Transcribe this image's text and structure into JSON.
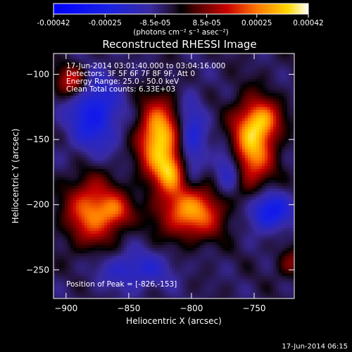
{
  "colorbar": {
    "ticks": [
      "-0.00042",
      "-0.00025",
      "-8.5e-05",
      "8.5e-05",
      "0.00025",
      "0.00042"
    ],
    "values": [
      -0.00042,
      -0.00025,
      -8.5e-05,
      8.5e-05,
      0.00025,
      0.00042
    ],
    "range": [
      -0.00042,
      0.00042
    ],
    "unit_label": "(photons cm⁻² s⁻¹ asec⁻²)"
  },
  "footer_timestamp": "17-Jun-2014 06:15",
  "chart_data": {
    "type": "heatmap",
    "title": "Reconstructed RHESSI Image",
    "xlabel": "Heliocentric X (arcsec)",
    "ylabel": "Heliocentric Y (arcsec)",
    "xlim": [
      -910,
      -718
    ],
    "ylim": [
      -272,
      -84
    ],
    "x_ticks": [
      -900,
      -850,
      -800,
      -750
    ],
    "y_ticks": [
      -100,
      -150,
      -200,
      -250
    ],
    "x_tick_labels": [
      "−900",
      "−850",
      "−800",
      "−750"
    ],
    "y_tick_labels": [
      "−100",
      "−150",
      "−200",
      "−250"
    ],
    "colormap": "blue-purple-red-yellow-white",
    "annotations": [
      "17-Jun-2014 03:01:40.000 to 03:04:16.000",
      "Detectors: 3F 5F 6F 7F 8F 9F, Att 0",
      "Energy Range: 25.0 - 50.0 keV",
      "Clean     Total counts: 6.33E+03"
    ],
    "peak": {
      "x": -826,
      "y": -153,
      "label": "Position of Peak = [-826,-153]"
    },
    "sources": [
      {
        "x": -826,
        "y": -150,
        "sx": 11,
        "sy": 20,
        "amp": 1.0
      },
      {
        "x": -816,
        "y": -175,
        "sx": 8,
        "sy": 10,
        "amp": 0.6
      },
      {
        "x": -800,
        "y": -205,
        "sx": 18,
        "sy": 14,
        "amp": 0.8
      },
      {
        "x": -860,
        "y": -205,
        "sx": 9,
        "sy": 9,
        "amp": 0.45
      },
      {
        "x": -880,
        "y": -205,
        "sx": 14,
        "sy": 18,
        "amp": 0.7
      },
      {
        "x": -752,
        "y": -155,
        "sx": 12,
        "sy": 22,
        "amp": 0.85
      },
      {
        "x": -742,
        "y": -135,
        "sx": 10,
        "sy": 10,
        "amp": 0.5
      },
      {
        "x": -895,
        "y": -105,
        "sx": 9,
        "sy": 9,
        "amp": 0.55
      },
      {
        "x": -720,
        "y": -245,
        "sx": 8,
        "sy": 8,
        "amp": 0.3
      }
    ],
    "negative_regions": [
      {
        "x": -878,
        "y": -130,
        "sx": 14,
        "sy": 20,
        "amp": 0.55
      },
      {
        "x": -770,
        "y": -175,
        "sx": 8,
        "sy": 14,
        "amp": 0.45
      },
      {
        "x": -738,
        "y": -205,
        "sx": 12,
        "sy": 10,
        "amp": 0.6
      },
      {
        "x": -800,
        "y": -150,
        "sx": 8,
        "sy": 22,
        "amp": 0.4
      },
      {
        "x": -845,
        "y": -250,
        "sx": 20,
        "sy": 10,
        "amp": 0.35
      }
    ]
  }
}
